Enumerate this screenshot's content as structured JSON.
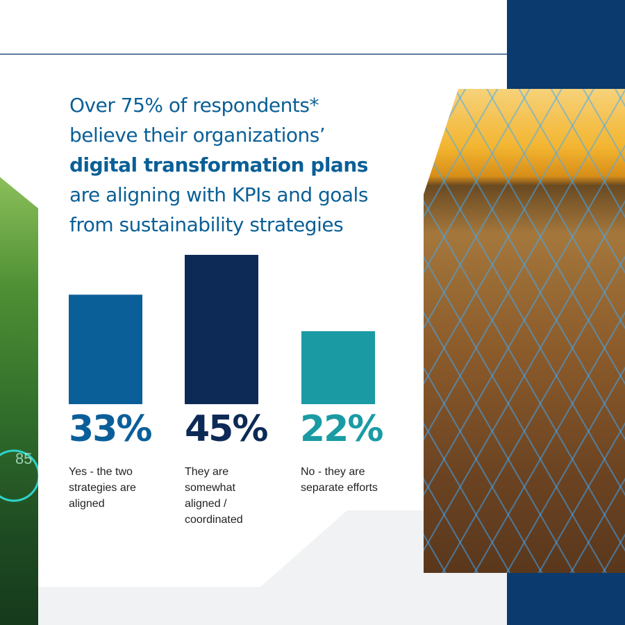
{
  "headline": {
    "line1": "Over 75% of respondents*",
    "line2": "believe their organizations’",
    "line3_bold": "digital transformation plans",
    "line4": "are aligning with KPIs and goals",
    "line5": "from sustainability strategies"
  },
  "decor": {
    "green_image_number": "85"
  },
  "chart_data": {
    "type": "bar",
    "categories": [
      "Yes - the two strategies are aligned",
      "They are somewhat aligned / coordinated",
      "No - they are separate efforts"
    ],
    "values": [
      33,
      45,
      22
    ],
    "value_labels": [
      "33%",
      "45%",
      "22%"
    ],
    "colors": [
      "#0b5f99",
      "#0d2a56",
      "#1a9ba4"
    ],
    "ylim": [
      0,
      45
    ],
    "grid": false
  }
}
